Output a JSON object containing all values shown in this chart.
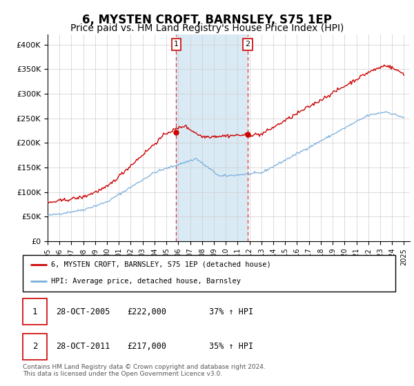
{
  "title": "6, MYSTEN CROFT, BARNSLEY, S75 1EP",
  "subtitle": "Price paid vs. HM Land Registry's House Price Index (HPI)",
  "title_fontsize": 12,
  "subtitle_fontsize": 10,
  "ylabel_ticks": [
    "£0",
    "£50K",
    "£100K",
    "£150K",
    "£200K",
    "£250K",
    "£300K",
    "£350K",
    "£400K"
  ],
  "ytick_values": [
    0,
    50000,
    100000,
    150000,
    200000,
    250000,
    300000,
    350000,
    400000
  ],
  "ylim": [
    0,
    420000
  ],
  "xlim_start": 1995.0,
  "xlim_end": 2025.5,
  "hpi_color": "#7aaedc",
  "price_color": "#cc0000",
  "marker_color": "#cc0000",
  "shade_color": "#daeaf5",
  "vline_color": "#dd3333",
  "transaction1_x": 2005.83,
  "transaction1_y": 222000,
  "transaction2_x": 2011.83,
  "transaction2_y": 217000,
  "legend_line1": "6, MYSTEN CROFT, BARNSLEY, S75 1EP (detached house)",
  "legend_line2": "HPI: Average price, detached house, Barnsley",
  "note_line1": "Contains HM Land Registry data © Crown copyright and database right 2024.",
  "note_line2": "This data is licensed under the Open Government Licence v3.0.",
  "table_row1": [
    "1",
    "28-OCT-2005",
    "£222,000",
    "37% ↑ HPI"
  ],
  "table_row2": [
    "2",
    "28-OCT-2011",
    "£217,000",
    "35% ↑ HPI"
  ],
  "xticks": [
    1995,
    1996,
    1997,
    1998,
    1999,
    2000,
    2001,
    2002,
    2003,
    2004,
    2005,
    2006,
    2007,
    2008,
    2009,
    2010,
    2011,
    2012,
    2013,
    2014,
    2015,
    2016,
    2017,
    2018,
    2019,
    2020,
    2021,
    2022,
    2023,
    2024,
    2025
  ]
}
